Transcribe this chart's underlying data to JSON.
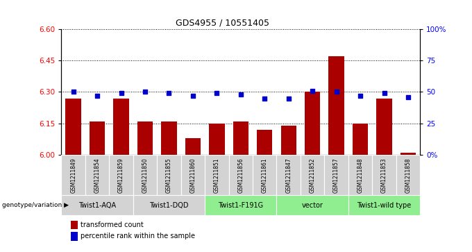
{
  "title": "GDS4955 / 10551405",
  "samples": [
    "GSM1211849",
    "GSM1211854",
    "GSM1211859",
    "GSM1211850",
    "GSM1211855",
    "GSM1211860",
    "GSM1211851",
    "GSM1211856",
    "GSM1211861",
    "GSM1211847",
    "GSM1211852",
    "GSM1211857",
    "GSM1211848",
    "GSM1211853",
    "GSM1211858"
  ],
  "bar_values": [
    6.27,
    6.16,
    6.27,
    6.16,
    6.16,
    6.08,
    6.15,
    6.16,
    6.12,
    6.14,
    6.3,
    6.47,
    6.15,
    6.27,
    6.01
  ],
  "dot_values": [
    50,
    47,
    49,
    50,
    49,
    47,
    49,
    48,
    45,
    45,
    51,
    50,
    47,
    49,
    46
  ],
  "groups": [
    {
      "label": "Twist1-AQA",
      "start": 0,
      "end": 2,
      "color": "#d3d3d3"
    },
    {
      "label": "Twist1-DQD",
      "start": 3,
      "end": 5,
      "color": "#d3d3d3"
    },
    {
      "label": "Twist1-F191G",
      "start": 6,
      "end": 8,
      "color": "#90ee90"
    },
    {
      "label": "vector",
      "start": 9,
      "end": 11,
      "color": "#90ee90"
    },
    {
      "label": "Twist1-wild type",
      "start": 12,
      "end": 14,
      "color": "#90ee90"
    }
  ],
  "ylim_left": [
    6.0,
    6.6
  ],
  "ylim_right": [
    0,
    100
  ],
  "yticks_left": [
    6.0,
    6.15,
    6.3,
    6.45,
    6.6
  ],
  "yticks_right": [
    0,
    25,
    50,
    75,
    100
  ],
  "bar_color": "#aa0000",
  "dot_color": "#0000cc",
  "legend_red_label": "transformed count",
  "legend_blue_label": "percentile rank within the sample",
  "genotype_label": "genotype/variation"
}
